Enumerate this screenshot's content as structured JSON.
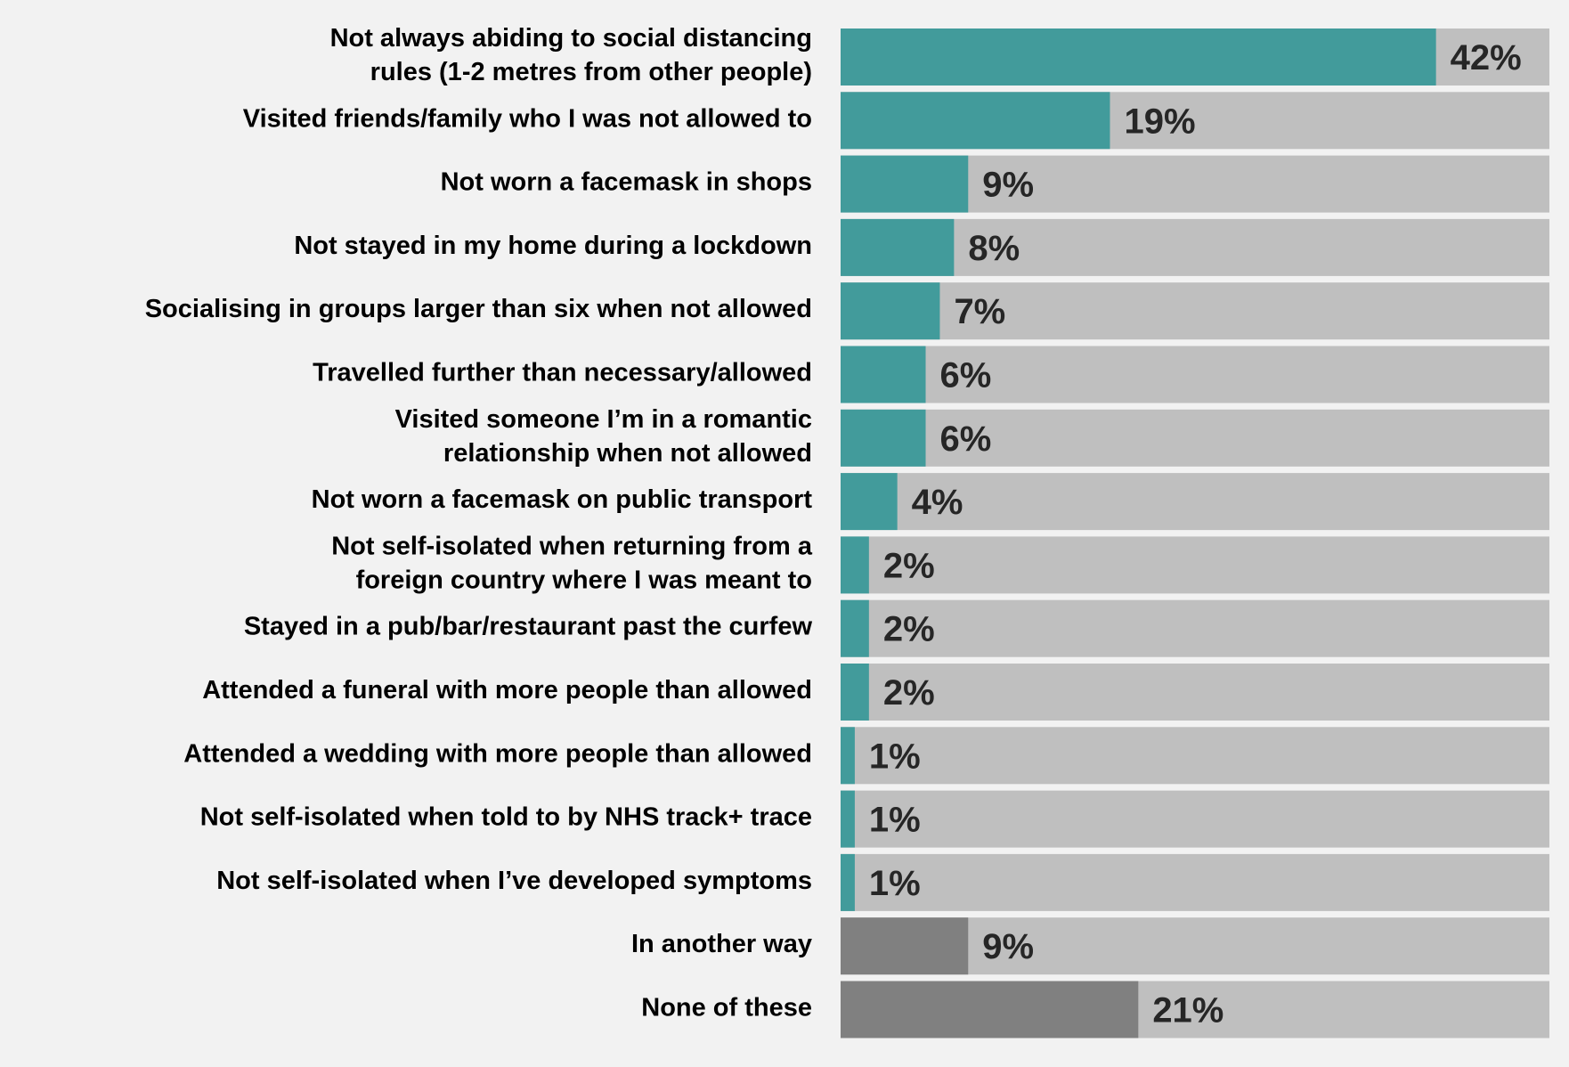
{
  "chart_data": {
    "type": "bar",
    "orientation": "horizontal",
    "categories": [
      "Not always abiding to social distancing rules (1-2 metres from other people)",
      "Visited friends/family who I was not allowed to",
      "Not worn a facemask in shops",
      "Not stayed in my home during a lockdown",
      "Socialising in groups larger than six when not allowed",
      "Travelled further than necessary/allowed",
      "Visited someone I’m in a romantic relationship when not allowed",
      "Not worn a facemask on public transport",
      "Not self-isolated when returning from a foreign country where I was meant to",
      "Stayed in a pub/bar/restaurant past the curfew",
      "Attended a funeral with more people than allowed",
      "Attended a wedding with more people than allowed",
      "Not self-isolated when told to by NHS track+ trace",
      "Not self-isolated when I’ve developed symptoms",
      "In another way",
      "None of these"
    ],
    "category_lines": [
      [
        "Not always abiding to social distancing",
        "rules (1-2 metres from other people)"
      ],
      [
        "Visited friends/family who I was not allowed to"
      ],
      [
        "Not worn a facemask in shops"
      ],
      [
        "Not stayed in my home during a lockdown"
      ],
      [
        "Socialising in groups larger than six when not allowed"
      ],
      [
        "Travelled further than necessary/allowed"
      ],
      [
        "Visited someone I’m in a romantic",
        "relationship when not allowed"
      ],
      [
        "Not worn a facemask on public transport"
      ],
      [
        "Not self-isolated when returning from a",
        "foreign country where I was meant to"
      ],
      [
        "Stayed in a pub/bar/restaurant past the curfew"
      ],
      [
        "Attended a funeral with more people than allowed"
      ],
      [
        "Attended a wedding with more people than allowed"
      ],
      [
        "Not self-isolated when told to by NHS track+ trace"
      ],
      [
        "Not self-isolated when I’ve developed symptoms"
      ],
      [
        "In another way"
      ],
      [
        "None of these"
      ]
    ],
    "values": [
      42,
      19,
      9,
      8,
      7,
      6,
      6,
      4,
      2,
      2,
      2,
      1,
      1,
      1,
      9,
      21
    ],
    "value_labels": [
      "42%",
      "19%",
      "9%",
      "8%",
      "7%",
      "6%",
      "6%",
      "4%",
      "2%",
      "2%",
      "2%",
      "1%",
      "1%",
      "1%",
      "9%",
      "21%"
    ],
    "xlim": [
      0,
      50
    ],
    "title": "",
    "xlabel": "",
    "ylabel": "",
    "grid": false,
    "legend": "none",
    "colors": {
      "primary": "#429b9b",
      "secondary": "#808080",
      "track": "#bfbfbf",
      "background": "#f2f2f2"
    },
    "bar_colors": [
      "primary",
      "primary",
      "primary",
      "primary",
      "primary",
      "primary",
      "primary",
      "primary",
      "primary",
      "primary",
      "primary",
      "primary",
      "primary",
      "primary",
      "secondary",
      "secondary"
    ]
  }
}
